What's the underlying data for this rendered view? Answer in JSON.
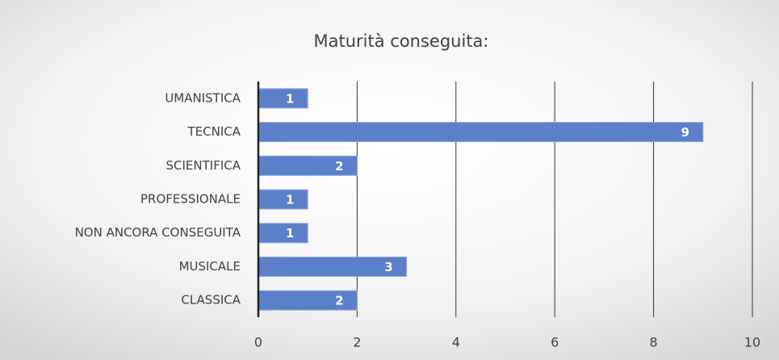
{
  "chart_data": {
    "type": "bar",
    "orientation": "horizontal",
    "title": "Maturità conseguita:",
    "categories": [
      "UMANISTICA",
      "TECNICA",
      "SCIENTIFICA",
      "PROFESSIONALE",
      "NON ANCORA CONSEGUITA",
      "MUSICALE",
      "CLASSICA"
    ],
    "values": [
      1,
      9,
      2,
      1,
      1,
      3,
      2
    ],
    "color": "#5b7fc8",
    "xlim": [
      0,
      10
    ],
    "xticks": [
      0,
      2,
      4,
      6,
      8,
      10
    ],
    "grid": true
  }
}
